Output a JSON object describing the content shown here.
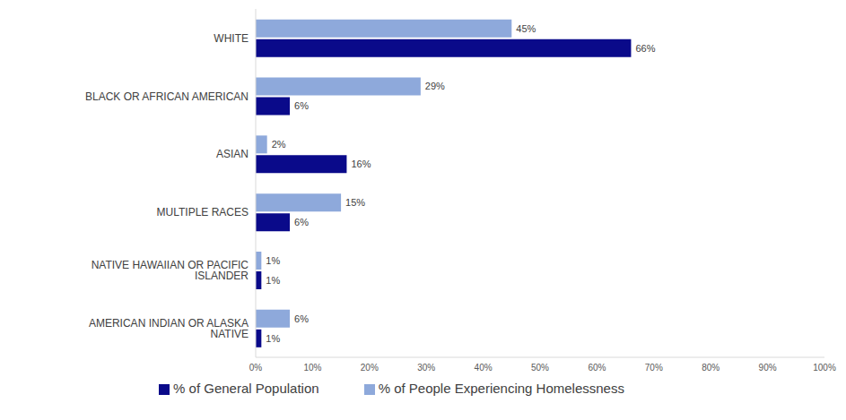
{
  "chart_data": {
    "type": "bar",
    "orientation": "horizontal",
    "categories": [
      "WHITE",
      "BLACK OR AFRICAN AMERICAN",
      "ASIAN",
      "MULTIPLE RACES",
      "NATIVE HAWAIIAN OR PACIFIC ISLANDER",
      "AMERICAN INDIAN OR ALASKA NATIVE"
    ],
    "series": [
      {
        "name": "% of People Experiencing Homelessness",
        "color": "#8EA9DB",
        "values": [
          45,
          29,
          2,
          15,
          1,
          6
        ],
        "value_labels": [
          "45%",
          "29%",
          "2%",
          "15%",
          "1%",
          "6%"
        ]
      },
      {
        "name": "% of General Population",
        "color": "#0A0A8A",
        "values": [
          66,
          6,
          16,
          6,
          1,
          1
        ],
        "value_labels": [
          "66%",
          "6%",
          "16%",
          "6%",
          "1%",
          "1%"
        ]
      }
    ],
    "xlim": [
      0,
      100
    ],
    "xticks": [
      {
        "value": 0,
        "label": "0%"
      },
      {
        "value": 10,
        "label": "10%"
      },
      {
        "value": 20,
        "label": "20%"
      },
      {
        "value": 30,
        "label": "30%"
      },
      {
        "value": 40,
        "label": "40%"
      },
      {
        "value": 50,
        "label": "50%"
      },
      {
        "value": 60,
        "label": "60%"
      },
      {
        "value": 70,
        "label": "70%"
      },
      {
        "value": 80,
        "label": "80%"
      },
      {
        "value": 90,
        "label": "90%"
      },
      {
        "value": 100,
        "label": "100%"
      }
    ],
    "grid": false,
    "data_labels": true,
    "legend": "bottom"
  }
}
